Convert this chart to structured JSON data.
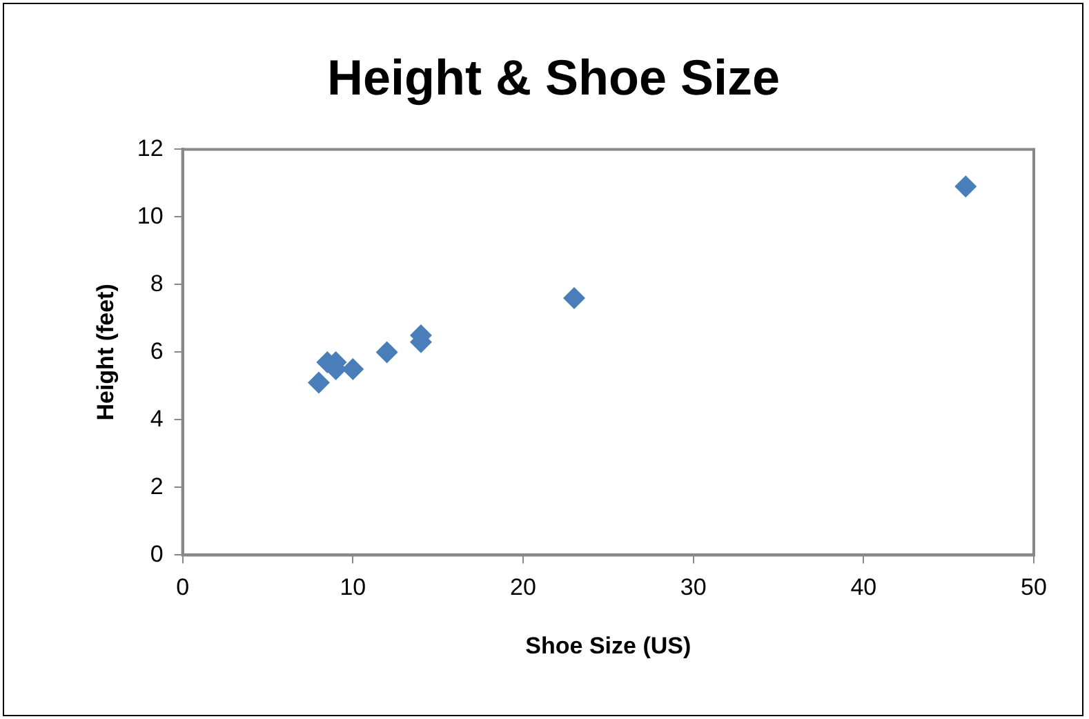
{
  "chart_data": {
    "type": "scatter",
    "title": "Height & Shoe Size",
    "xlabel": "Shoe Size (US)",
    "ylabel": "Height (feet)",
    "x": [
      8,
      8.5,
      9,
      9,
      10,
      12,
      14,
      14,
      23,
      46
    ],
    "series": [
      {
        "color": "#4a7ebb",
        "values": [
          5.1,
          5.7,
          5.7,
          5.5,
          5.5,
          6.0,
          6.5,
          6.3,
          7.6,
          10.9
        ]
      }
    ],
    "xlim": [
      0,
      50
    ],
    "xticks": [
      0,
      10,
      20,
      30,
      40,
      50
    ],
    "ylim": [
      0,
      12
    ],
    "yticks": [
      0,
      2,
      4,
      6,
      8,
      10,
      12
    ],
    "grid": false,
    "legend": false,
    "marker": "diamond"
  }
}
